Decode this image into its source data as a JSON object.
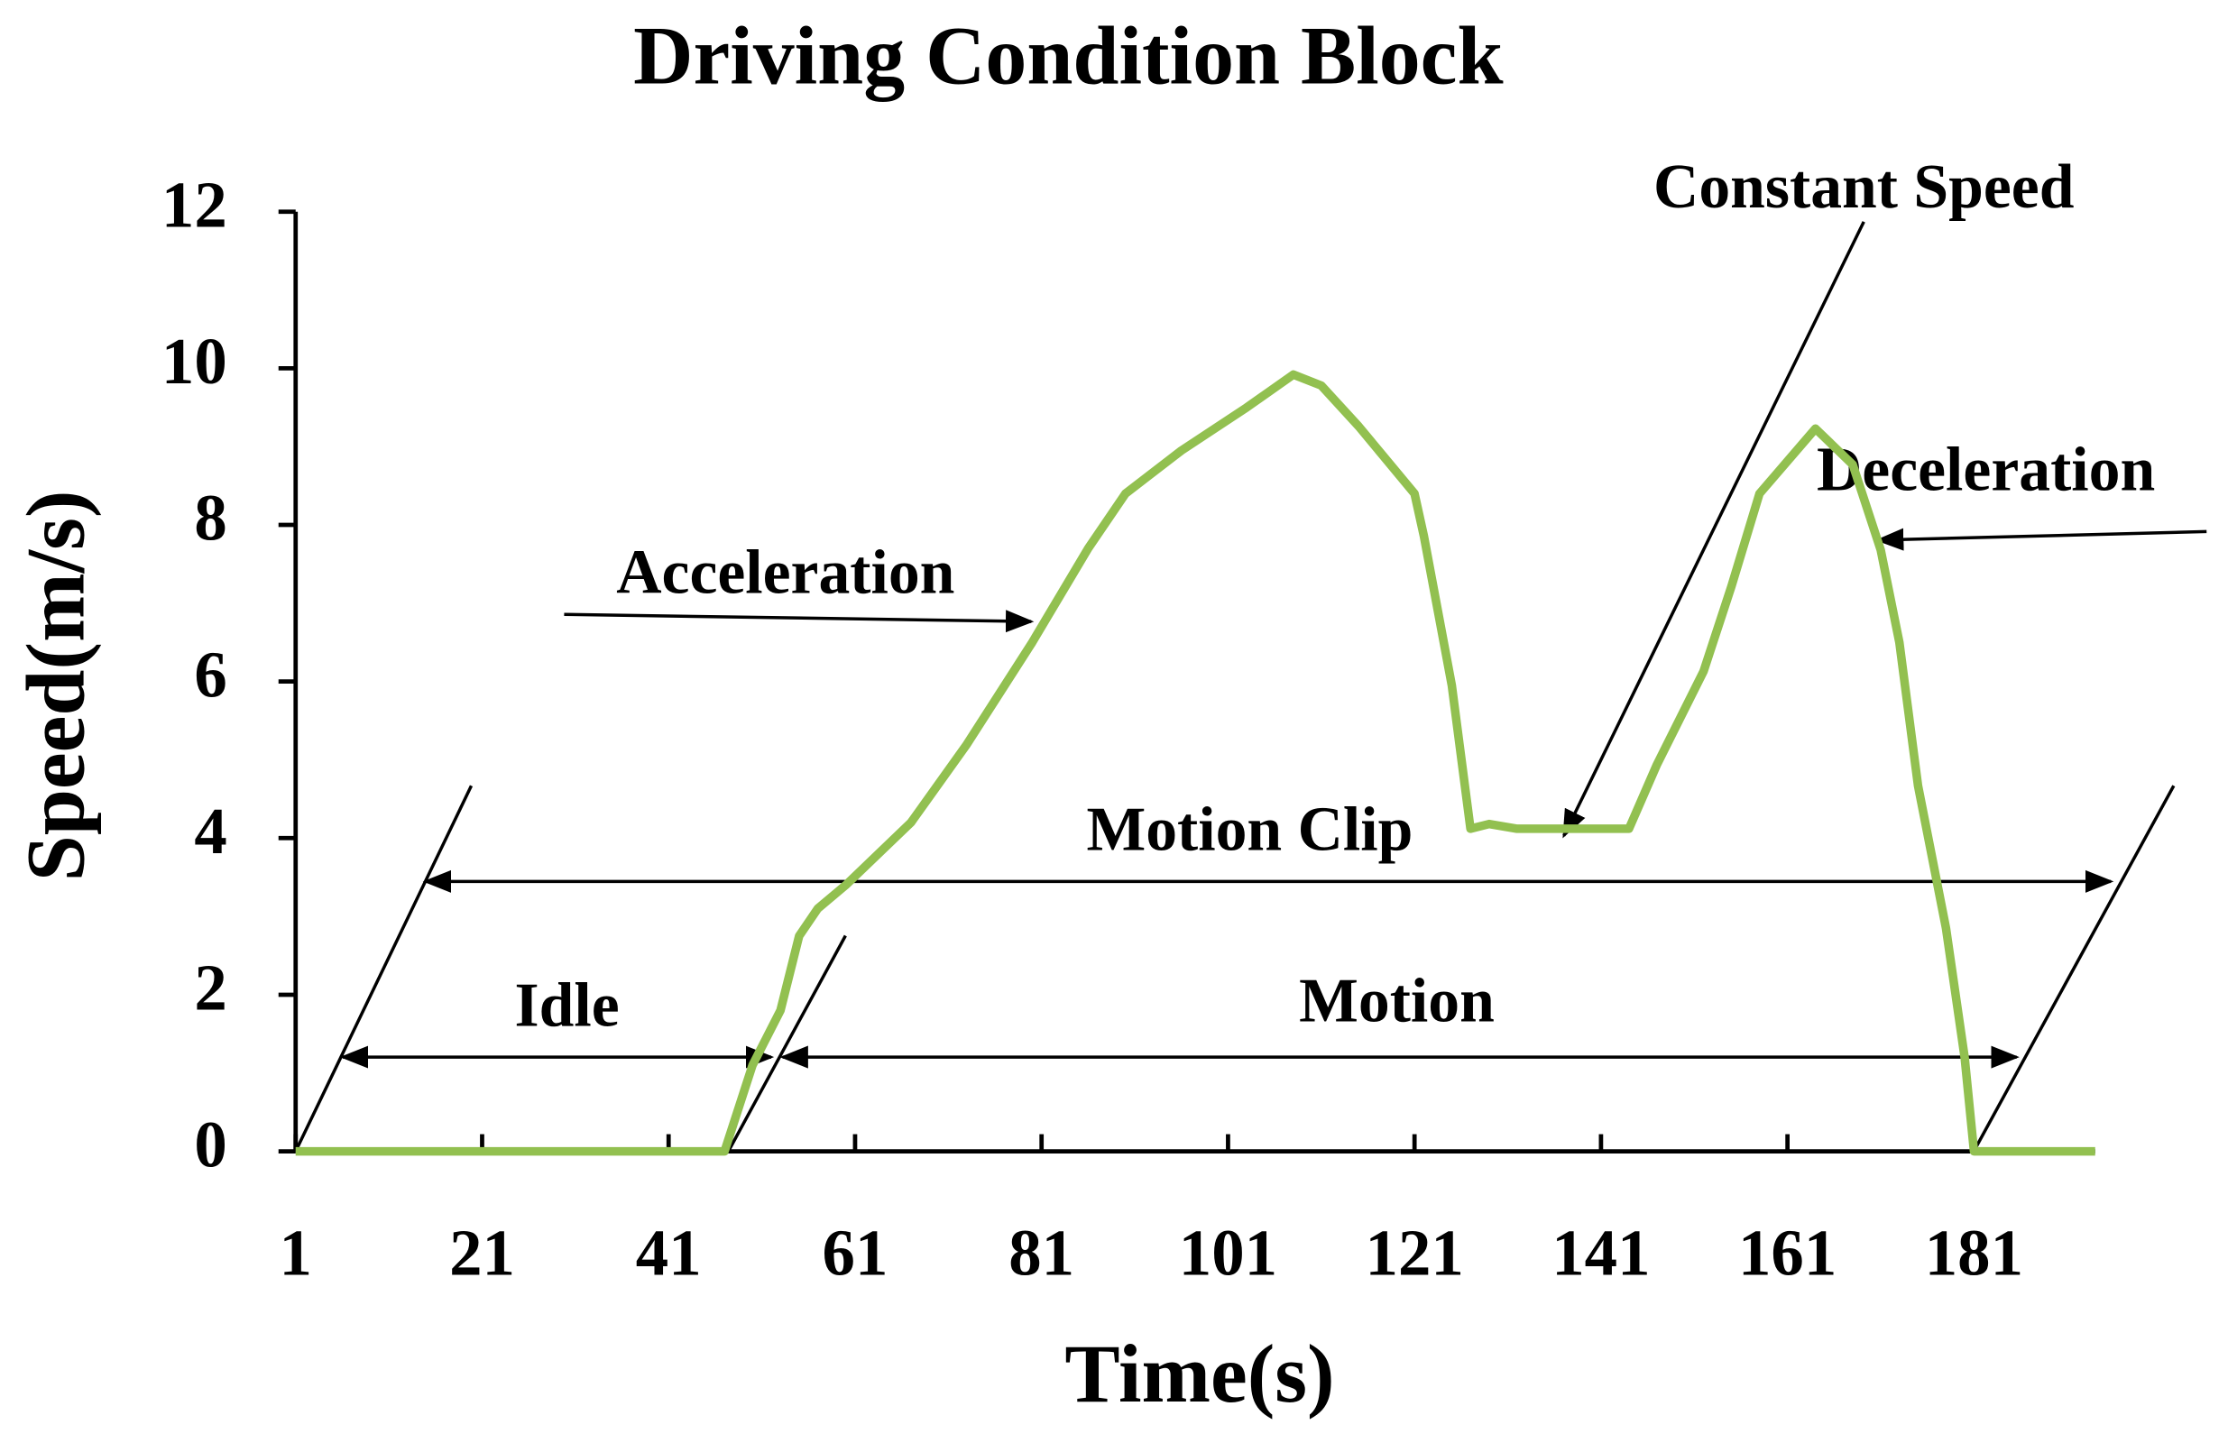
{
  "chart_data": {
    "type": "line",
    "title": "Driving Condition Block",
    "x_label": "Time(s)",
    "y_label": "Speed(m/s)",
    "x": [
      1,
      10,
      20,
      30,
      40,
      47,
      50,
      53,
      55,
      57,
      60,
      67,
      73,
      80,
      86,
      90,
      96,
      103,
      108,
      111,
      115,
      121,
      122,
      125,
      127,
      129,
      132,
      144,
      147,
      152,
      155,
      158,
      164,
      168,
      171,
      173,
      175,
      178,
      180,
      181,
      194
    ],
    "values": [
      0,
      0,
      0,
      0,
      0,
      0,
      1.1,
      1.8,
      2.75,
      3.1,
      3.4,
      4.2,
      5.2,
      6.5,
      7.7,
      8.4,
      8.95,
      9.5,
      9.92,
      9.78,
      9.26,
      8.4,
      7.86,
      5.95,
      4.12,
      4.18,
      4.12,
      4.12,
      4.94,
      6.13,
      7.22,
      8.4,
      9.23,
      8.77,
      7.68,
      6.5,
      4.67,
      2.85,
      1.2,
      0,
      0
    ],
    "color": "#92c050",
    "xlim": [
      1,
      194
    ],
    "xticks": [
      1,
      21,
      41,
      61,
      81,
      101,
      121,
      141,
      161,
      181
    ],
    "ylim": [
      0,
      12
    ],
    "yticks": [
      0,
      2,
      4,
      6,
      8,
      10,
      12
    ],
    "grid": false,
    "annotations": [
      "Acceleration",
      "Constant Speed",
      "Deceleration",
      "Motion Clip",
      "Idle",
      "Motion"
    ]
  }
}
